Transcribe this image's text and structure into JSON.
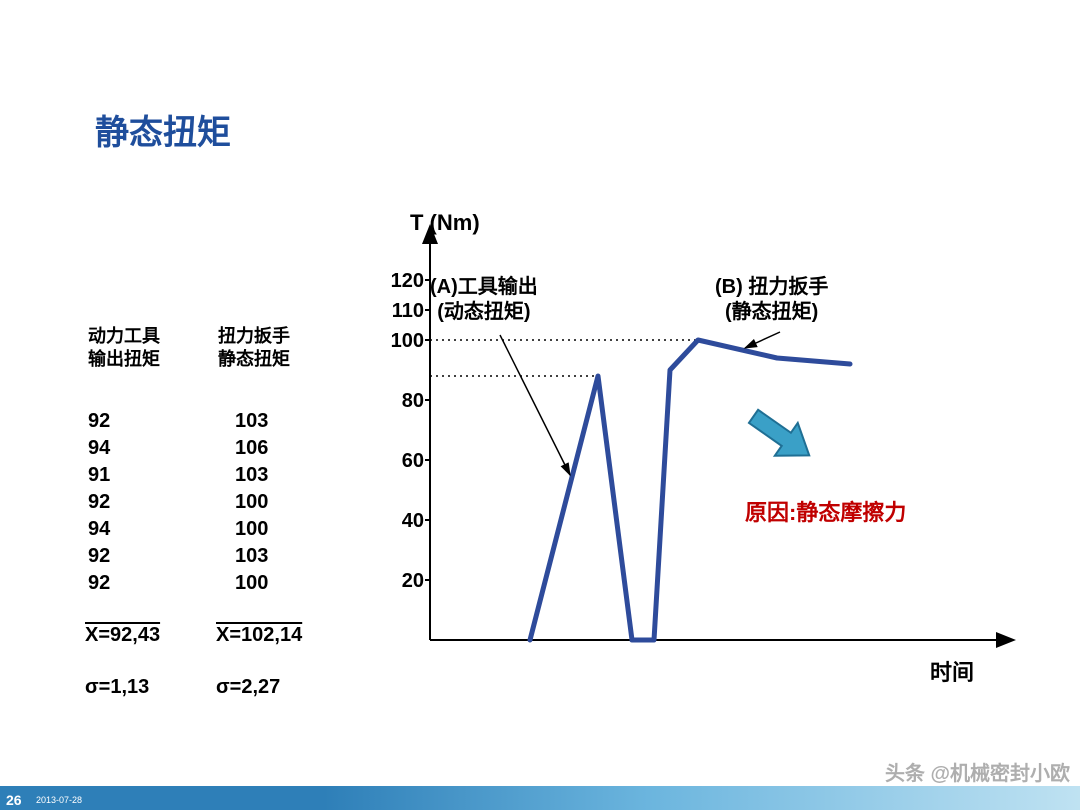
{
  "title": {
    "text": "静态扭矩",
    "color": "#1f4e9c",
    "fontsize": 34
  },
  "colors": {
    "title": "#1f4e9c",
    "text": "#000000",
    "line": "#2e4b9b",
    "cause": "#c00000",
    "arrow_fill": "#3aa0c7",
    "arrow_border": "#1f6f94",
    "footer_start": "#2e7fb8",
    "footer_end": "#bfe2f2",
    "axis": "#000000",
    "dotted": "#000000"
  },
  "left_table": {
    "col1": {
      "header": "动力工具\n输出扭矩",
      "values": [
        "92",
        "94",
        "91",
        "92",
        "94",
        "92",
        "92"
      ],
      "mean_label": "X=92,43",
      "sigma_label": "σ=1,13"
    },
    "col2": {
      "header": "扭力扳手\n静态扭矩",
      "values": [
        "103",
        "106",
        "103",
        "100",
        "100",
        "103",
        "100"
      ],
      "mean_label": "X=102,14",
      "sigma_label": "σ=2,27"
    },
    "header_fontsize": 18,
    "value_fontsize": 20
  },
  "chart": {
    "type": "line",
    "y_title": "T (Nm)",
    "x_title": "时间",
    "yticks": [
      20,
      40,
      60,
      80,
      100,
      110,
      120
    ],
    "ylim": [
      0,
      130
    ],
    "xlim": [
      0,
      10
    ],
    "line_width": 4,
    "line_color": "#2e4b9b",
    "points": [
      [
        1.8,
        0
      ],
      [
        3.0,
        88
      ],
      [
        3.6,
        0
      ],
      [
        4.0,
        0
      ],
      [
        4.3,
        90
      ],
      [
        4.8,
        100
      ],
      [
        6.2,
        94
      ],
      [
        7.5,
        92
      ]
    ],
    "refs": [
      {
        "y": 100,
        "x_from": 0,
        "x_to": 4.8
      },
      {
        "y": 88,
        "x_from": 0,
        "x_to": 3.0
      }
    ],
    "annotations": {
      "A": {
        "line1": "(A)工具输出",
        "line2": "(动态扭矩)",
        "arrow_to": [
          2.6,
          55
        ]
      },
      "B": {
        "line1": "(B) 扭力扳手",
        "line2": "(静态扭矩)",
        "arrow_to": [
          5.6,
          97
        ]
      }
    },
    "cause_text": "原因:静态摩擦力",
    "block_arrow": {
      "from": [
        6.0,
        88
      ],
      "to": [
        7.0,
        75
      ]
    }
  },
  "footer": {
    "page": "26",
    "date": "2013-07-28",
    "watermark": "头条 @机械密封小欧"
  }
}
